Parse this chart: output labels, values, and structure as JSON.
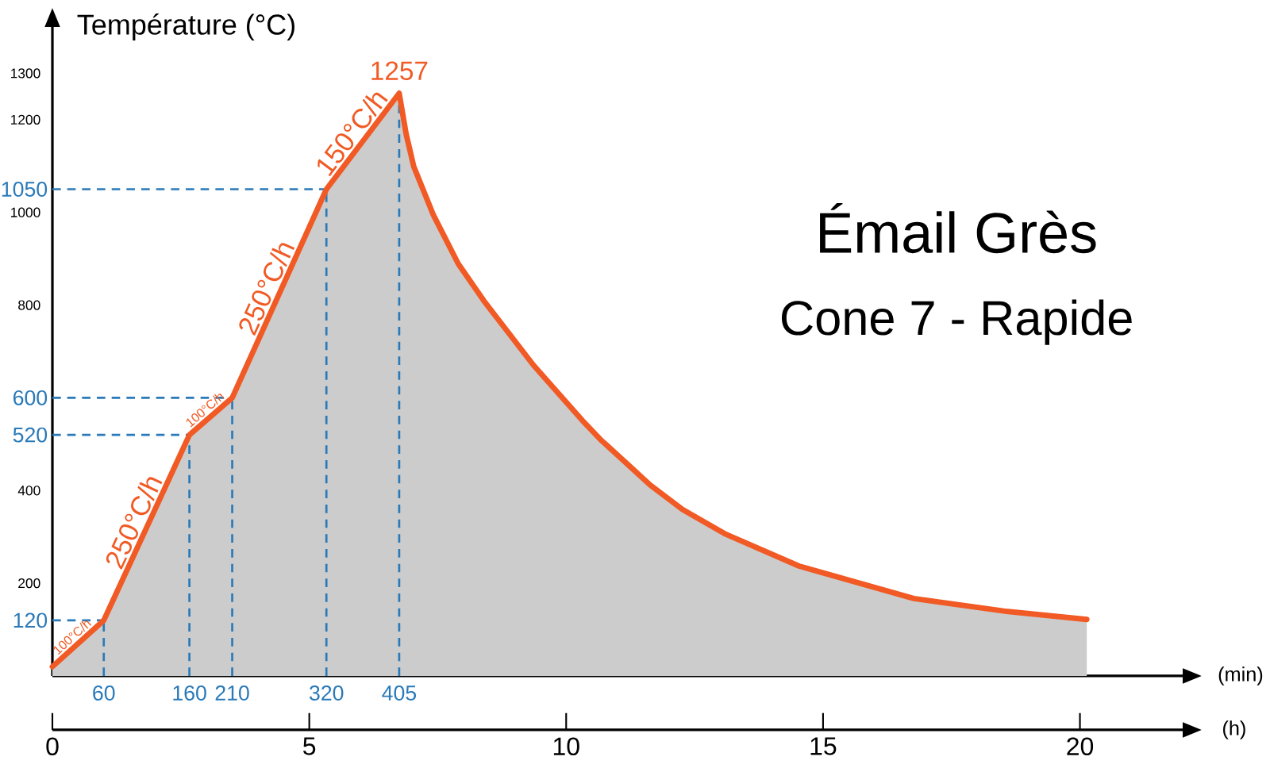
{
  "chart_data": {
    "type": "line",
    "title": "Émail Grès",
    "subtitle": "Cone 7 - Rapide",
    "xlabel": "(min)",
    "ylabel": "Température (°C)",
    "x2label": "(h)",
    "x": [
      0,
      60,
      160,
      210,
      320,
      405,
      413,
      422,
      445,
      474,
      504,
      562,
      619,
      640,
      678,
      698,
      736,
      785,
      872,
      1006,
      1111,
      1208
    ],
    "series": [
      {
        "color": "#f15a24",
        "values": [
          20,
          120,
          520,
          600,
          1050,
          1257,
          1170,
          1099,
          994,
          889,
          809,
          670,
          551,
          510,
          446,
          412,
          359,
          307,
          237,
          167,
          140,
          122
        ],
        "lower": [
          0,
          0,
          0,
          0,
          0,
          0,
          0,
          0,
          0,
          0,
          0,
          0,
          0,
          0,
          0,
          0,
          0,
          0,
          0,
          0,
          0,
          0
        ],
        "upper": [
          20,
          120,
          520,
          600,
          1050,
          1257,
          1170,
          1099,
          994,
          889,
          809,
          670,
          551,
          510,
          446,
          412,
          359,
          307,
          237,
          167,
          140,
          122
        ]
      }
    ],
    "xlim": [
      0,
      1320
    ],
    "xticks": [
      60,
      160,
      210,
      320,
      405
    ],
    "ylim": [
      0,
      1400
    ],
    "yticks": [
      200,
      400,
      800,
      1000,
      1200,
      1300
    ],
    "x2lim": [
      0,
      22
    ],
    "x2ticks": [
      0,
      5,
      10,
      15,
      20
    ],
    "ref_lines": [
      {
        "axis": "y",
        "value": 120,
        "label": "120",
        "color": "#2a7ab9",
        "line_style": "dashed"
      },
      {
        "axis": "y",
        "value": 520,
        "label": "520",
        "color": "#2a7ab9",
        "line_style": "dashed"
      },
      {
        "axis": "y",
        "value": 600,
        "label": "600",
        "color": "#2a7ab9",
        "line_style": "dashed"
      },
      {
        "axis": "y",
        "value": 1050,
        "label": "1050",
        "color": "#2a7ab9",
        "line_style": "dashed"
      },
      {
        "axis": "x",
        "value": 60,
        "color": "#2a7ab9",
        "line_style": "dashed"
      },
      {
        "axis": "x",
        "value": 160,
        "color": "#2a7ab9",
        "line_style": "dashed"
      },
      {
        "axis": "x",
        "value": 210,
        "color": "#2a7ab9",
        "line_style": "dashed"
      },
      {
        "axis": "x",
        "value": 320,
        "color": "#2a7ab9",
        "line_style": "dashed"
      },
      {
        "axis": "x",
        "value": 405,
        "color": "#2a7ab9",
        "line_style": "dashed"
      }
    ],
    "annotations": [
      {
        "text": "100°C/h",
        "x": 30,
        "y": 70
      },
      {
        "text": "250°C/h",
        "x": 110,
        "y": 320
      },
      {
        "text": "100°C/h",
        "x": 185,
        "y": 560
      },
      {
        "text": "250°C/h",
        "x": 265,
        "y": 825
      },
      {
        "text": "150°C/h",
        "x": 362.5,
        "y": 1153.5
      },
      {
        "text": "1257",
        "x": 405,
        "y": 1257
      }
    ]
  }
}
